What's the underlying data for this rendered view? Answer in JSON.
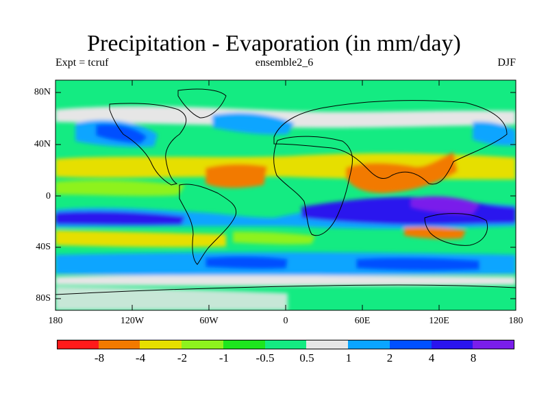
{
  "title": "Precipitation - Evaporation (in mm/day)",
  "subtitle_left": "Expt = tcruf",
  "subtitle_center": "ensemble2_6",
  "subtitle_right": "DJF",
  "lat_labels": [
    "80N",
    "40N",
    "0",
    "40S",
    "80S"
  ],
  "lon_labels": [
    "180",
    "120W",
    "60W",
    "0",
    "60E",
    "120E",
    "180"
  ],
  "colorbar": {
    "labels": [
      "-8",
      "-4",
      "-2",
      "-1",
      "-0.5",
      "0.5",
      "1",
      "2",
      "4",
      "8"
    ],
    "colors": [
      "#ff1a1a",
      "#f27a00",
      "#e6df00",
      "#8ef21e",
      "#1ee61e",
      "#14eb82",
      "#e6e6e6",
      "#0aa5ff",
      "#0050ff",
      "#2a14ee",
      "#7a1eeb"
    ]
  },
  "colors": {
    "background": "#ffffff",
    "coast": "#000000"
  }
}
